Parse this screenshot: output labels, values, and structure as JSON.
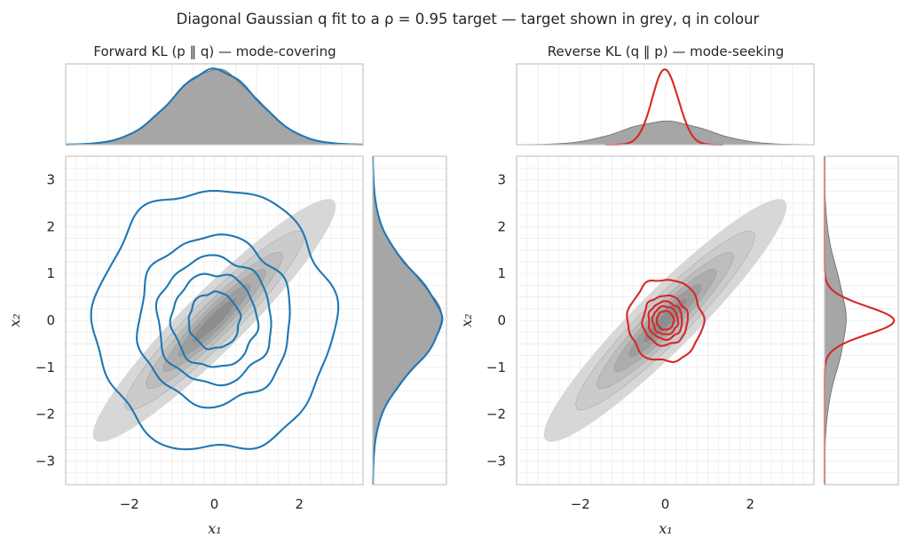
{
  "figure": {
    "title": "Diagonal Gaussian q fit to a ρ = 0.95 target — target shown in grey, q in colour"
  },
  "colors": {
    "target_fill": "#d4d4d4",
    "target_contour": "#8c8c8c",
    "marginal_fill": "#a6a6a6",
    "forward": "#1f77b4",
    "reverse": "#d62728",
    "grid": "#ececec",
    "frame": "#c8c8c8"
  },
  "chart_data": [
    {
      "type": "contour",
      "title": "Forward KL (p ‖ q) — mode-covering",
      "xlabel": "x₁",
      "ylabel": "x₂",
      "xlim": [
        -3.5,
        3.5
      ],
      "ylim": [
        -3.5,
        3.5
      ],
      "xticks": [
        "−2",
        "0",
        "2"
      ],
      "yticks": [
        "3",
        "2",
        "1",
        "0",
        "−1",
        "−2",
        "−3"
      ],
      "xtick_values": [
        -2,
        0,
        2
      ],
      "ytick_values": [
        3,
        2,
        1,
        0,
        -1,
        -2,
        -3
      ],
      "grid": true,
      "target": {
        "rho": 0.95,
        "sigma": 1.0,
        "color": "grey"
      },
      "q": {
        "mu": [
          0,
          0
        ],
        "sigma": [
          1.0,
          1.0
        ],
        "color": "#1f77b4",
        "contour_radii": [
          0.6,
          1.0,
          1.35,
          1.8,
          2.8
        ]
      },
      "marginal_x": {
        "target_sigma": 1.0,
        "q_sigma": 1.0
      },
      "marginal_y": {
        "target_sigma": 1.0,
        "q_sigma": 1.0
      }
    },
    {
      "type": "contour",
      "title": "Reverse KL (q ‖ p) — mode-seeking",
      "xlabel": "x₁",
      "ylabel": "x₂",
      "xlim": [
        -3.5,
        3.5
      ],
      "ylim": [
        -3.5,
        3.5
      ],
      "xticks": [
        "−2",
        "0",
        "2"
      ],
      "yticks": [
        "3",
        "2",
        "1",
        "0",
        "−1",
        "−2",
        "−3"
      ],
      "xtick_values": [
        -2,
        0,
        2
      ],
      "ytick_values": [
        3,
        2,
        1,
        0,
        -1,
        -2,
        -3
      ],
      "grid": true,
      "target": {
        "rho": 0.95,
        "sigma": 1.0,
        "color": "grey"
      },
      "q": {
        "mu": [
          0,
          0
        ],
        "sigma": [
          0.31,
          0.31
        ],
        "color": "#d62728",
        "contour_radii": [
          0.2,
          0.3,
          0.4,
          0.53,
          0.88
        ]
      },
      "marginal_x": {
        "target_sigma": 1.0,
        "q_sigma": 0.31
      },
      "marginal_y": {
        "target_sigma": 1.0,
        "q_sigma": 0.31
      }
    }
  ]
}
